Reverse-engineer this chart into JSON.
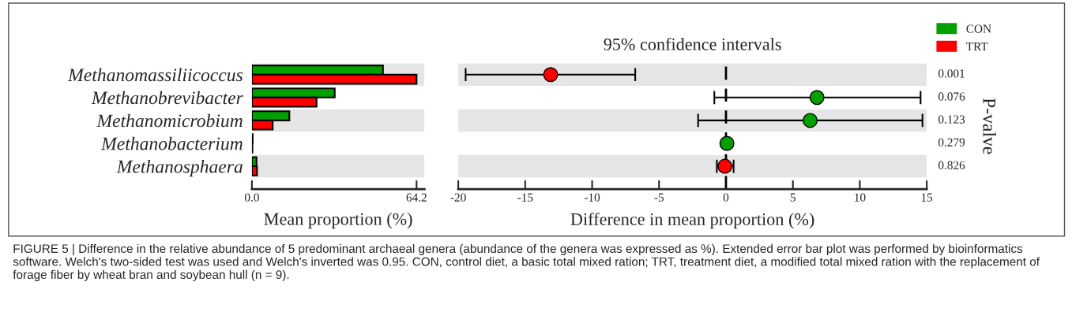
{
  "chart_data": [
    {
      "type": "bar",
      "orientation": "horizontal",
      "xlabel": "Mean proportion (%)",
      "categories": [
        "Methanomassiliicoccus",
        "Methanobrevibacter",
        "Methanomicrobium",
        "Methanobacterium",
        "Methanosphaera"
      ],
      "series": [
        {
          "name": "CON",
          "color": "#00a000",
          "values": [
            51.1,
            32.3,
            14.6,
            0.3,
            1.8
          ]
        },
        {
          "name": "TRT",
          "color": "#ff0000",
          "values": [
            64.2,
            25.2,
            8.1,
            0.2,
            2.0
          ]
        }
      ],
      "xlim": [
        0,
        67.3
      ],
      "xticks": [
        {
          "value": 0,
          "label": "0.0"
        },
        64.2
      ],
      "legend": "top right",
      "annotations": [
        "FIGURE 5 | Difference in the relative abundance of 5 predominant archaeal genera (abundance of the genera was expressed as %). Extended error bar plot was performed by bioinformatics software. Welch's two-sided test was used and Welch's inverted was 0.95. CON, control diet, a basic total mixed ration; TRT, treatment diet, a modified total mixed ration with the replacement of forage fiber by wheat bran and soybean hull (n = 9)."
      ]
    },
    {
      "type": "scatter",
      "orientation": "horizontal",
      "title": "95% confidence intervals",
      "xlabel": "Difference in mean proportion (%)",
      "y2label": "P-valve",
      "categories": [
        null,
        null,
        null,
        null,
        null
      ],
      "values": [
        -13.1,
        6.8,
        6.29,
        0.07,
        -0.08
      ],
      "colors": [
        "#ff0000",
        "#00a000",
        "#00a000",
        "#00a000",
        "#ff0000"
      ],
      "errors": [
        [
          -19.45,
          -6.78
        ],
        [
          -0.87,
          14.54
        ],
        [
          -2.08,
          14.68
        ],
        null,
        [
          -0.68,
          0.57
        ]
      ],
      "xlim": [
        -20,
        15
      ],
      "xticks": [
        -20,
        -15,
        -10,
        -5,
        0,
        5,
        10,
        15
      ],
      "tick_labels": "x",
      "marker": "circle",
      "ref_lines": [
        {
          "axis": "x",
          "value": 0,
          "line_style": "dashed",
          "color": "#000000"
        }
      ],
      "annotations": [
        "0.001",
        "0.076",
        "0.123",
        "0.279",
        "0.826"
      ]
    }
  ]
}
